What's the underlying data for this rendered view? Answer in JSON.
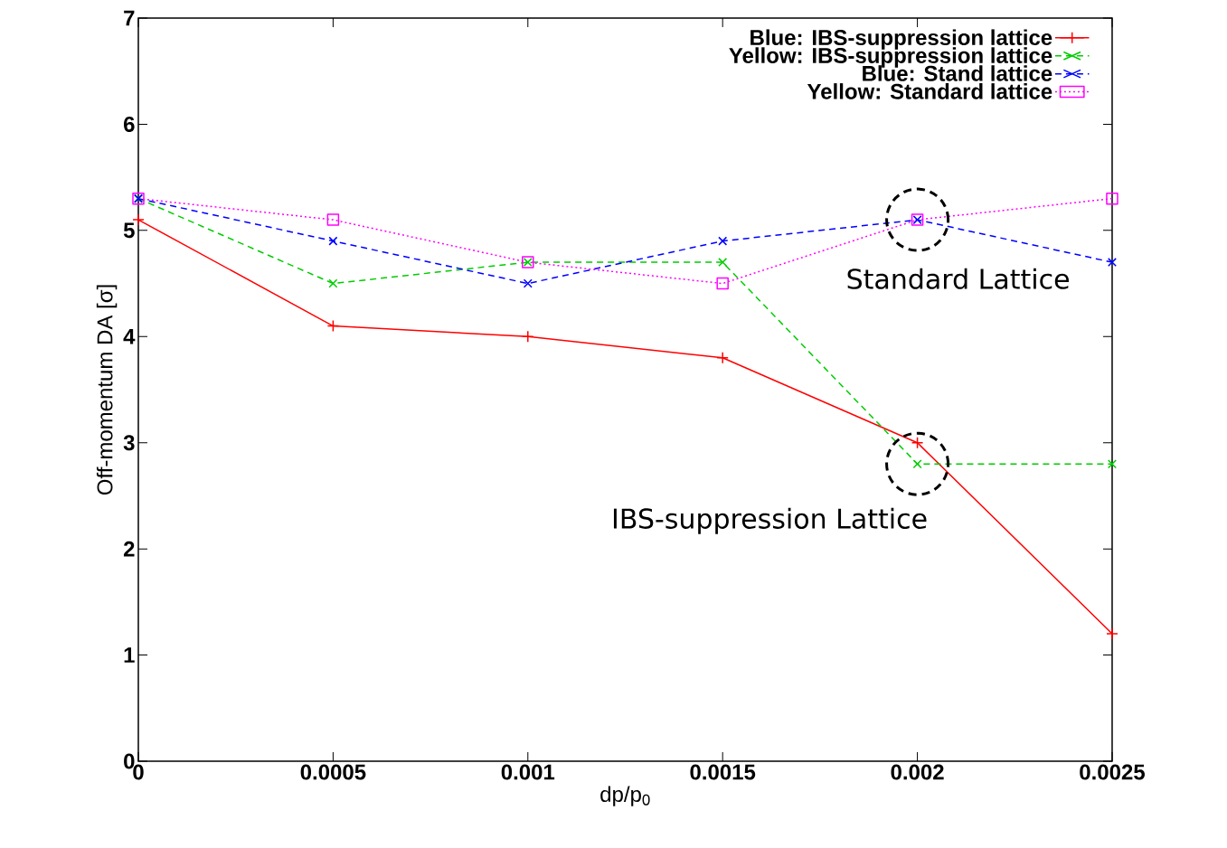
{
  "chart_data": {
    "type": "line",
    "xlabel": "dp/p$_{0}$",
    "ylabel": "Off-momentum DA [σ]",
    "x": [
      0,
      0.0005,
      0.001,
      0.0015,
      0.002,
      0.0025
    ],
    "series": [
      {
        "name": "Blue: IBS-suppression lattice",
        "color": "#ff0000",
        "marker": "plus",
        "line_style": "solid",
        "values": [
          5.1,
          4.1,
          4.0,
          3.8,
          3.0,
          1.2
        ]
      },
      {
        "name": "Yellow: IBS-suppression lattice",
        "color": "#00cc00",
        "marker": "cross",
        "line_style": "dashed",
        "values": [
          5.3,
          4.5,
          4.7,
          4.7,
          2.8,
          2.8
        ]
      },
      {
        "name": "Blue: Stand lattice",
        "color": "#0000ff",
        "marker": "cross",
        "line_style": "dashed",
        "values": [
          5.3,
          4.9,
          4.5,
          4.9,
          5.1,
          4.7
        ]
      },
      {
        "name": "Yellow: Standard lattice",
        "color": "#ff00ff",
        "marker": "square",
        "line_style": "dotted",
        "values": [
          5.3,
          5.1,
          4.7,
          4.5,
          5.1,
          5.3
        ]
      }
    ],
    "xlim": [
      0,
      0.0025
    ],
    "xticks": [
      0,
      0.0005,
      0.001,
      0.0015,
      0.002,
      0.0025
    ],
    "ylim": [
      0,
      7
    ],
    "yticks": [
      0,
      1,
      2,
      3,
      4,
      5,
      6,
      7
    ],
    "legend": "top right",
    "grid": false,
    "annotations": [
      {
        "text": "Standard Lattice",
        "x": 0.002,
        "y": 5.1
      },
      {
        "text": "IBS-suppression Lattice",
        "x": 0.002,
        "y": 2.8
      }
    ]
  }
}
